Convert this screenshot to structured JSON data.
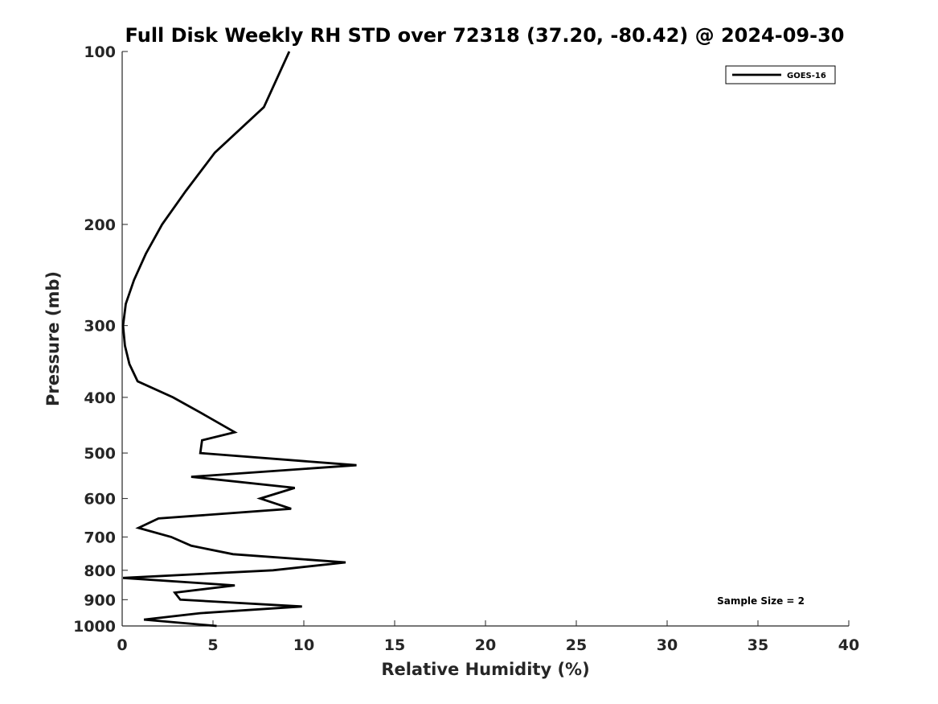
{
  "chart_data": {
    "type": "line",
    "title": "Full Disk Weekly RH STD over 72318 (37.20, -80.42) @ 2024-09-30",
    "xlabel": "Relative Humidity (%)",
    "ylabel": "Pressure (mb)",
    "xlim": [
      0,
      40
    ],
    "ylim": [
      100,
      1000
    ],
    "y_scale": "log",
    "y_inverted": true,
    "x_ticks": [
      0,
      5,
      10,
      15,
      20,
      25,
      30,
      35,
      40
    ],
    "y_ticks": [
      100,
      200,
      300,
      400,
      500,
      600,
      700,
      800,
      900,
      1000
    ],
    "grid": false,
    "legend": {
      "position": "top-right",
      "entries": [
        "GOES-16"
      ]
    },
    "annotation": "Sample Size = 2",
    "series": [
      {
        "name": "GOES-16",
        "color": "#000000",
        "points": [
          [
            9.2,
            100
          ],
          [
            7.8,
            125
          ],
          [
            5.1,
            150
          ],
          [
            3.5,
            175
          ],
          [
            2.2,
            200
          ],
          [
            1.3,
            225
          ],
          [
            0.65,
            250
          ],
          [
            0.2,
            275
          ],
          [
            0.05,
            300
          ],
          [
            0.15,
            325
          ],
          [
            0.4,
            350
          ],
          [
            0.85,
            375
          ],
          [
            2.8,
            400
          ],
          [
            4.3,
            425
          ],
          [
            6.2,
            460
          ],
          [
            4.4,
            475
          ],
          [
            4.3,
            500
          ],
          [
            12.9,
            525
          ],
          [
            3.8,
            550
          ],
          [
            9.5,
            575
          ],
          [
            7.6,
            600
          ],
          [
            9.3,
            625
          ],
          [
            2.0,
            650
          ],
          [
            0.9,
            675
          ],
          [
            2.7,
            700
          ],
          [
            3.8,
            725
          ],
          [
            6.1,
            750
          ],
          [
            12.3,
            775
          ],
          [
            8.3,
            800
          ],
          [
            0.05,
            825
          ],
          [
            6.2,
            850
          ],
          [
            2.9,
            875
          ],
          [
            3.2,
            900
          ],
          [
            9.9,
            925
          ],
          [
            4.3,
            950
          ],
          [
            1.2,
            975
          ],
          [
            5.2,
            1000
          ]
        ]
      }
    ]
  }
}
